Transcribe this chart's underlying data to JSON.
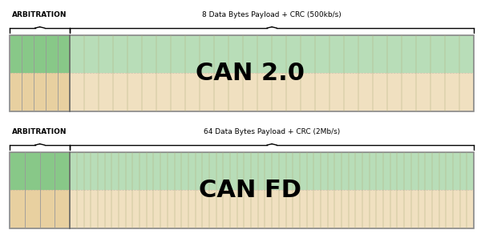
{
  "bg_color": "#ffffff",
  "top_label_arb": "ARBITRATION",
  "top_label_data": "8 Data Bytes Payload + CRC (500kb/s)",
  "bottom_label_arb": "ARBITRATION",
  "bottom_label_data": "64 Data Bytes Payload + CRC (2Mb/s)",
  "title_top": "CAN 2.0",
  "title_bottom": "CAN FD",
  "arb_color_green": "#88c888",
  "arb_color_tan": "#e8d0a0",
  "data_color_green": "#b8ddb8",
  "data_color_tan": "#f0e0c0",
  "line_color": "#b0b080",
  "outline_color": "#999999",
  "border_color": "#888888"
}
